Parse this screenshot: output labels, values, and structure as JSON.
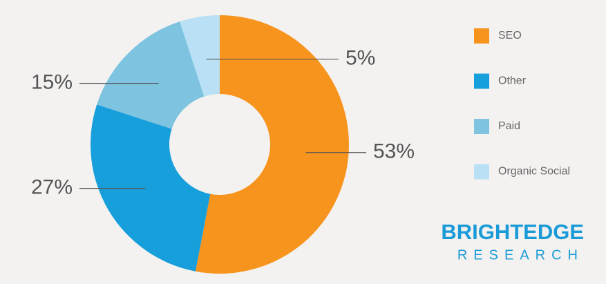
{
  "chart_data": {
    "type": "donut",
    "categories": [
      "SEO",
      "Other",
      "Paid",
      "Organic Social"
    ],
    "values": [
      53,
      27,
      15,
      5
    ],
    "value_labels": [
      "53%",
      "27%",
      "15%",
      "5%"
    ],
    "colors": [
      "#f7941e",
      "#179fdb",
      "#7ec4e1",
      "#b9e0f5"
    ],
    "brand": [
      "BRIGHTEDGE",
      "RESEARCH"
    ]
  }
}
